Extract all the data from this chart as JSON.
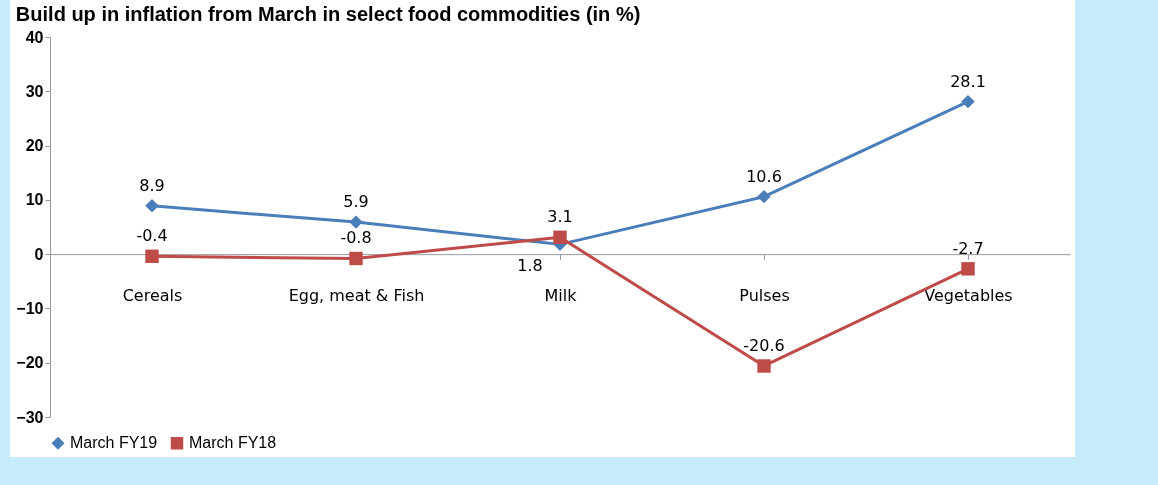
{
  "chart_data": {
    "type": "line",
    "title": "Build up in inflation from March in select food commodities (in %)",
    "categories": [
      "Cereals",
      "Egg, meat & Fish",
      "Milk",
      "Pulses",
      "Vegetables"
    ],
    "series": [
      {
        "name": "March FY19",
        "color": "#4a7ebb",
        "marker": "diamond",
        "values": [
          8.9,
          5.9,
          1.8,
          10.6,
          28.1
        ]
      },
      {
        "name": "March FY18",
        "color": "#be4b48",
        "marker": "square",
        "values": [
          -0.4,
          -0.8,
          3.1,
          -20.6,
          -2.7
        ]
      }
    ],
    "ylim": [
      -30,
      40
    ],
    "yticks": [
      -30,
      -20,
      -10,
      0,
      10,
      20,
      30,
      40
    ],
    "grid": false,
    "legend": "bottom",
    "data_labels": true
  }
}
